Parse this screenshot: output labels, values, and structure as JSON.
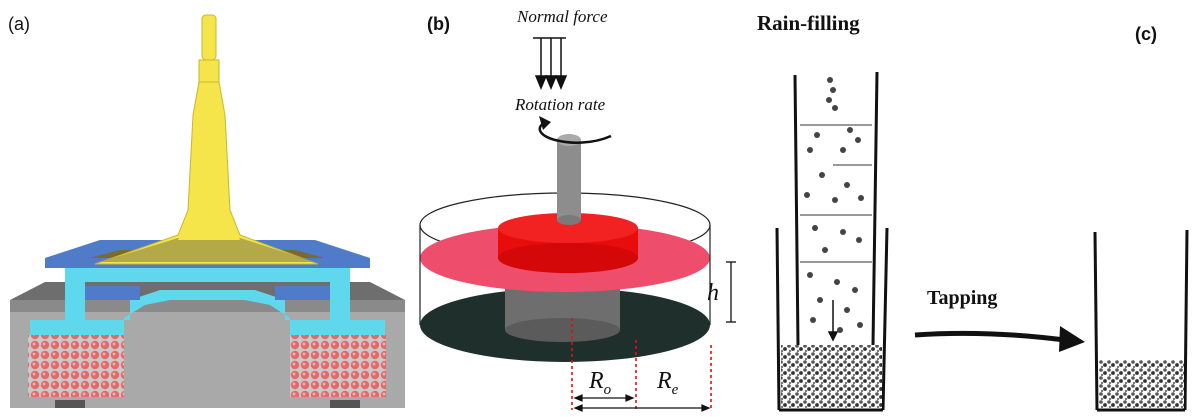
{
  "panel_a": {
    "label": "(a)"
  },
  "panel_b": {
    "label": "(b)",
    "normal_force": "Normal force",
    "rotation_rate": "Rotation rate",
    "height_symbol": "h",
    "r_inner_symbol": "R",
    "r_inner_sub": "o",
    "r_outer_symbol": "R",
    "r_outer_sub": "e"
  },
  "panel_c": {
    "label": "(c)",
    "title": "Rain-filling",
    "tapping": "Tapping"
  },
  "colors": {
    "yellow": "#f5e44a",
    "cyan": "#5fd8ee",
    "blue": "#4f7bc8",
    "gray": "#a9a9a9",
    "dark_gray": "#6e6e6e",
    "red": "#f20d0d",
    "pink": "#ee4d6b",
    "bead": "#e26a6a",
    "dark_disk": "#1f2f2b"
  }
}
